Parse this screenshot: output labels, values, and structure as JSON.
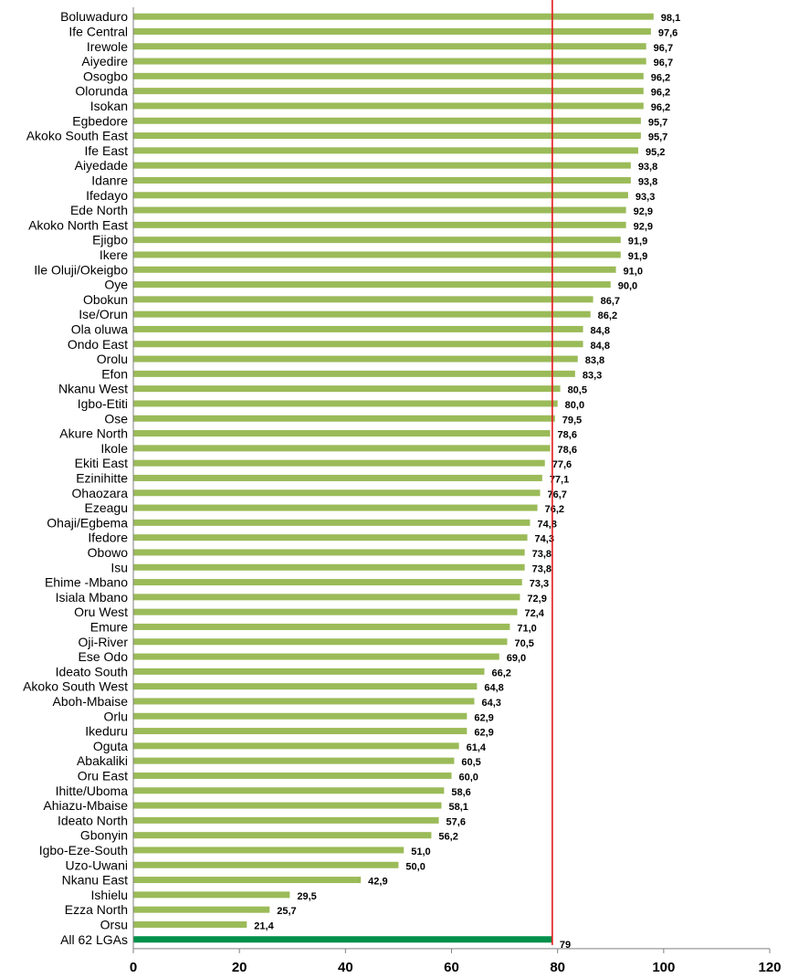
{
  "chart_data": {
    "type": "bar",
    "orientation": "horizontal",
    "title": "",
    "xlabel": "",
    "ylabel": "",
    "xlim": [
      0,
      120
    ],
    "xticks": [
      0,
      20,
      40,
      60,
      80,
      100,
      120
    ],
    "grid": false,
    "legend": "none",
    "categories": [
      "Boluwaduro",
      "Ife Central",
      "Irewole",
      "Aiyedire",
      "Osogbo",
      "Olorunda",
      "Isokan",
      "Egbedore",
      "Akoko South East",
      "Ife East",
      "Aiyedade",
      "Idanre",
      "Ifedayo",
      "Ede North",
      "Akoko North East",
      "Ejigbo",
      "Ikere",
      "Ile Oluji/Okeigbo",
      "Oye",
      "Obokun",
      "Ise/Orun",
      "Ola oluwa",
      "Ondo East",
      "Orolu",
      "Efon",
      "Nkanu West",
      "Igbo-Etiti",
      "Ose",
      "Akure North",
      "Ikole",
      "Ekiti East",
      "Ezinihitte",
      "Ohaozara",
      "Ezeagu",
      "Ohaji/Egbema",
      "Ifedore",
      "Obowo",
      "Isu",
      "Ehime -Mbano",
      "Isiala Mbano",
      "Oru West",
      "Emure",
      "Oji-River",
      "Ese Odo",
      "Ideato South",
      "Akoko South West",
      "Aboh-Mbaise",
      "Orlu",
      "Ikeduru",
      "Oguta",
      "Abakaliki",
      "Oru East",
      "Ihitte/Uboma",
      "Ahiazu-Mbaise",
      "Ideato North",
      "Gbonyin",
      "Igbo-Eze-South",
      "Uzo-Uwani",
      "Nkanu East",
      "Ishielu",
      "Ezza North",
      "Orsu",
      "All 62 LGAs"
    ],
    "values": [
      98.1,
      97.6,
      96.7,
      96.7,
      96.2,
      96.2,
      96.2,
      95.7,
      95.7,
      95.2,
      93.8,
      93.8,
      93.3,
      92.9,
      92.9,
      91.9,
      91.9,
      91.0,
      90.0,
      86.7,
      86.2,
      84.8,
      84.8,
      83.8,
      83.3,
      80.5,
      80.0,
      79.5,
      78.6,
      78.6,
      77.6,
      77.1,
      76.7,
      76.2,
      74.8,
      74.3,
      73.8,
      73.8,
      73.3,
      72.9,
      72.4,
      71.0,
      70.5,
      69.0,
      66.2,
      64.8,
      64.3,
      62.9,
      62.9,
      61.4,
      60.5,
      60.0,
      58.6,
      58.1,
      57.6,
      56.2,
      51.0,
      50.0,
      42.9,
      29.5,
      25.7,
      21.4,
      79
    ],
    "value_labels": [
      "98,1",
      "97,6",
      "96,7",
      "96,7",
      "96,2",
      "96,2",
      "96,2",
      "95,7",
      "95,7",
      "95,2",
      "93,8",
      "93,8",
      "93,3",
      "92,9",
      "92,9",
      "91,9",
      "91,9",
      "91,0",
      "90,0",
      "86,7",
      "86,2",
      "84,8",
      "84,8",
      "83,8",
      "83,3",
      "80,5",
      "80,0",
      "79,5",
      "78,6",
      "78,6",
      "77,6",
      "77,1",
      "76,7",
      "76,2",
      "74,8",
      "74,3",
      "73,8",
      "73,8",
      "73,3",
      "72,9",
      "72,4",
      "71,0",
      "70,5",
      "69,0",
      "66,2",
      "64,8",
      "64,3",
      "62,9",
      "62,9",
      "61,4",
      "60,5",
      "60,0",
      "58,6",
      "58,1",
      "57,6",
      "56,2",
      "51,0",
      "50,0",
      "42,9",
      "29,5",
      "25,7",
      "21,4",
      "79"
    ],
    "highlight_category": "All 62 LGAs",
    "reference_line": {
      "x": 79
    },
    "colors": {
      "bar": "#9bbb59",
      "highlight_bar": "#00914a",
      "reference_line": "#e31a1c",
      "axis": "#808080"
    }
  }
}
